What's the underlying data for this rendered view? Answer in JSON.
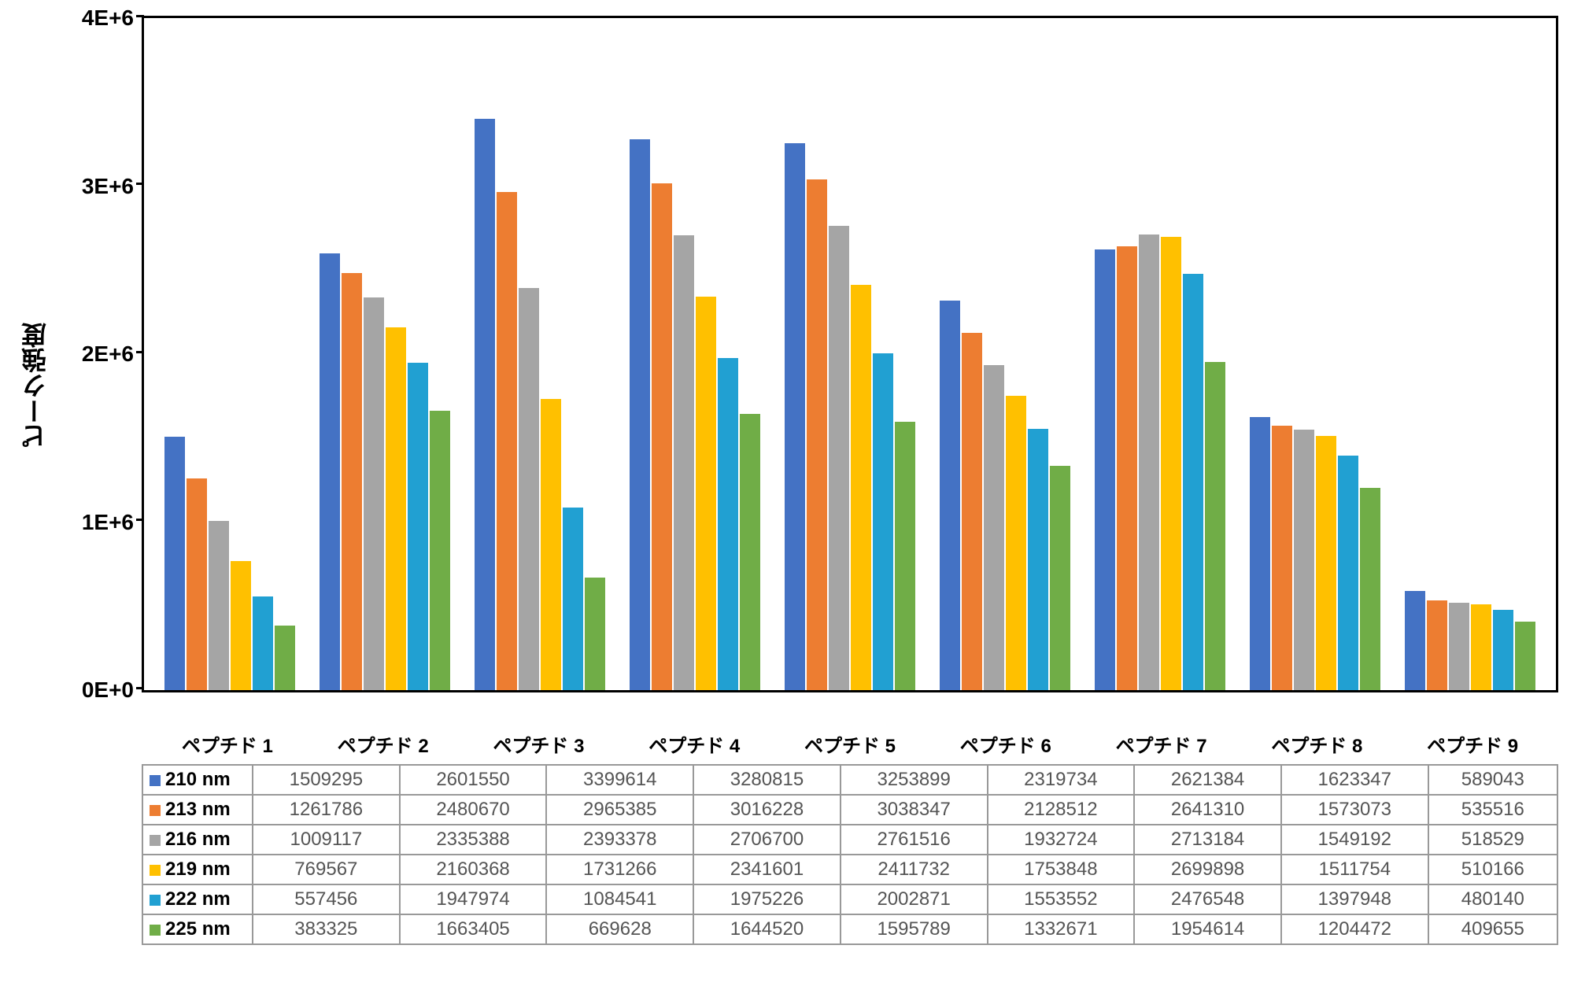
{
  "chart": {
    "type": "bar",
    "y_axis_label": "ピーク強度",
    "ylim": [
      0,
      4000000
    ],
    "ytick_step": 1000000,
    "ytick_labels": [
      "0E+0",
      "1E+6",
      "2E+6",
      "3E+6",
      "4E+6"
    ],
    "background_color": "#ffffff",
    "border_color": "#000000",
    "border_width": 3,
    "y_label_fontsize": 32,
    "tick_fontsize": 28,
    "x_label_fontsize": 24,
    "table_fontsize": 24,
    "bar_gap": 2,
    "categories": [
      "ペプチド 1",
      "ペプチド 2",
      "ペプチド 3",
      "ペプチド 4",
      "ペプチド 5",
      "ペプチド 6",
      "ペプチド 7",
      "ペプチド 8",
      "ペプチド 9"
    ],
    "series": [
      {
        "name": "210 nm",
        "color": "#4472c4",
        "values": [
          1509295,
          2601550,
          3399614,
          3280815,
          3253899,
          2319734,
          2621384,
          1623347,
          589043
        ]
      },
      {
        "name": "213 nm",
        "color": "#ed7d31",
        "values": [
          1261786,
          2480670,
          2965385,
          3016228,
          3038347,
          2128512,
          2641310,
          1573073,
          535516
        ]
      },
      {
        "name": "216 nm",
        "color": "#a5a5a5",
        "values": [
          1009117,
          2335388,
          2393378,
          2706700,
          2761516,
          1932724,
          2713184,
          1549192,
          518529
        ]
      },
      {
        "name": "219 nm",
        "color": "#ffc000",
        "values": [
          769567,
          2160368,
          1731266,
          2341601,
          2411732,
          1753848,
          2699898,
          1511754,
          510166
        ]
      },
      {
        "name": "222 nm",
        "color": "#21a0d2",
        "values": [
          557456,
          1947974,
          1084541,
          1975226,
          2002871,
          1553552,
          2476548,
          1397948,
          480140
        ]
      },
      {
        "name": "225 nm",
        "color": "#70ad47",
        "values": [
          383325,
          1663405,
          669628,
          1644520,
          1595789,
          1332671,
          1954614,
          1204472,
          409655
        ]
      }
    ],
    "table_grid_color": "#999999",
    "table_value_color": "#555555"
  }
}
